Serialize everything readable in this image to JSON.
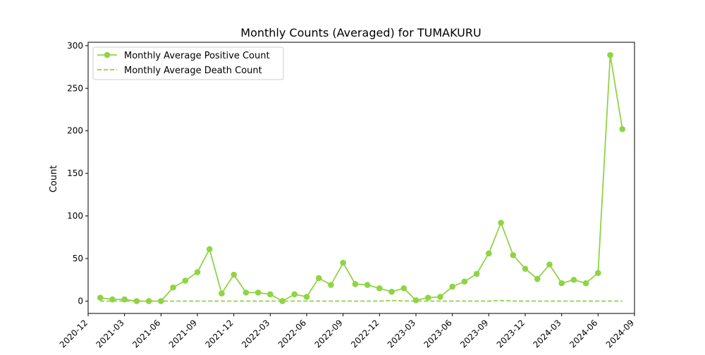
{
  "chart_data": {
    "type": "line",
    "title": "Monthly Counts (Averaged) for TUMAKURU",
    "xlabel": "",
    "ylabel": "Count",
    "ylim": [
      -14.5,
      304
    ],
    "xlim": [
      "2020-12-01",
      "2024-09-01"
    ],
    "grid": false,
    "legend_position": "upper left",
    "x_ticks": [
      "2020-12",
      "2021-03",
      "2021-06",
      "2021-09",
      "2021-12",
      "2022-03",
      "2022-06",
      "2022-09",
      "2022-12",
      "2023-03",
      "2023-06",
      "2023-09",
      "2023-12",
      "2024-03",
      "2024-06",
      "2024-09"
    ],
    "y_ticks": [
      0,
      50,
      100,
      150,
      200,
      250,
      300
    ],
    "x": [
      "2021-01",
      "2021-02",
      "2021-03",
      "2021-04",
      "2021-05",
      "2021-06",
      "2021-07",
      "2021-08",
      "2021-09",
      "2021-10",
      "2021-11",
      "2021-12",
      "2022-01",
      "2022-02",
      "2022-03",
      "2022-04",
      "2022-05",
      "2022-06",
      "2022-07",
      "2022-08",
      "2022-09",
      "2022-10",
      "2022-11",
      "2022-12",
      "2023-01",
      "2023-02",
      "2023-03",
      "2023-04",
      "2023-05",
      "2023-06",
      "2023-07",
      "2023-08",
      "2023-09",
      "2023-10",
      "2023-11",
      "2023-12",
      "2024-01",
      "2024-02",
      "2024-03",
      "2024-04",
      "2024-05",
      "2024-06",
      "2024-07",
      "2024-08"
    ],
    "series": [
      {
        "name": "Monthly Average Positive Count",
        "style": "solid-marker",
        "color": "#8fd444",
        "values": [
          4,
          2,
          2,
          0,
          0,
          0,
          16,
          24,
          34,
          61,
          9,
          31,
          10,
          10,
          8,
          0,
          8,
          5,
          27,
          19,
          45,
          20,
          19,
          15,
          11,
          15,
          1,
          4,
          5,
          17,
          23,
          32,
          56,
          92,
          54,
          38,
          26,
          43,
          21,
          25,
          21,
          33,
          289,
          202
        ]
      },
      {
        "name": "Monthly Average Death Count",
        "style": "dashed",
        "color": "#8fd444",
        "values": [
          0,
          0,
          0,
          0,
          0,
          0,
          0,
          0,
          0,
          0,
          0,
          0,
          0,
          0,
          0,
          0,
          0,
          0,
          0,
          0,
          0,
          0,
          0,
          0,
          0.7,
          0.2,
          0,
          0,
          0,
          0,
          0,
          0,
          0,
          0.6,
          0.1,
          0,
          0,
          0,
          0,
          0,
          0,
          0,
          0,
          0
        ]
      }
    ]
  }
}
